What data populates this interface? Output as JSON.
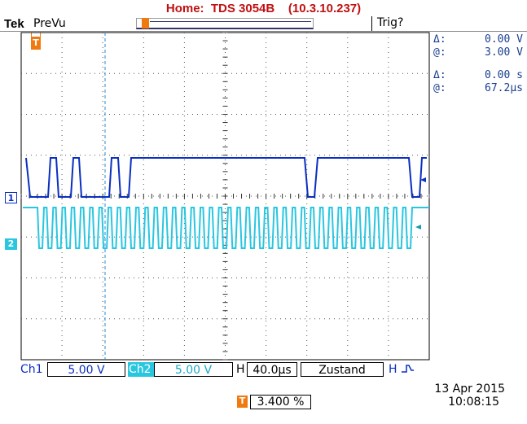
{
  "title": "Home:  TDS 3054B    (10.3.10.237)",
  "brand": "Tek",
  "acq_mode": "PreVu",
  "trig_status": "Trig?",
  "cursors": [
    {
      "label": "Δ:",
      "value": "0.00 V"
    },
    {
      "label": "@:",
      "value": "3.00 V"
    },
    {
      "label": "Δ:",
      "value": "0.00 s"
    },
    {
      "label": "@:",
      "value": "67.2µs"
    }
  ],
  "channels": [
    {
      "name": "Ch1",
      "scale": "5.00 V",
      "color": "#0a2fc0",
      "marker": "1"
    },
    {
      "name": "Ch2",
      "scale": "5.00 V",
      "color": "#29c6e0",
      "marker": "2"
    }
  ],
  "timebase": {
    "prefix": "H",
    "value": "40.0µs"
  },
  "trigger": {
    "source": "Zustand",
    "slope_label": "H",
    "marker": "T",
    "position": "3.400 %"
  },
  "date": "13 Apr  2015",
  "time": "10:08:15",
  "colors": {
    "ch1": "#0a2fc0",
    "ch2": "#29c6e0",
    "title": "#c01010",
    "trigger": "#f07a10",
    "cursor": "#1a3f8f"
  }
}
